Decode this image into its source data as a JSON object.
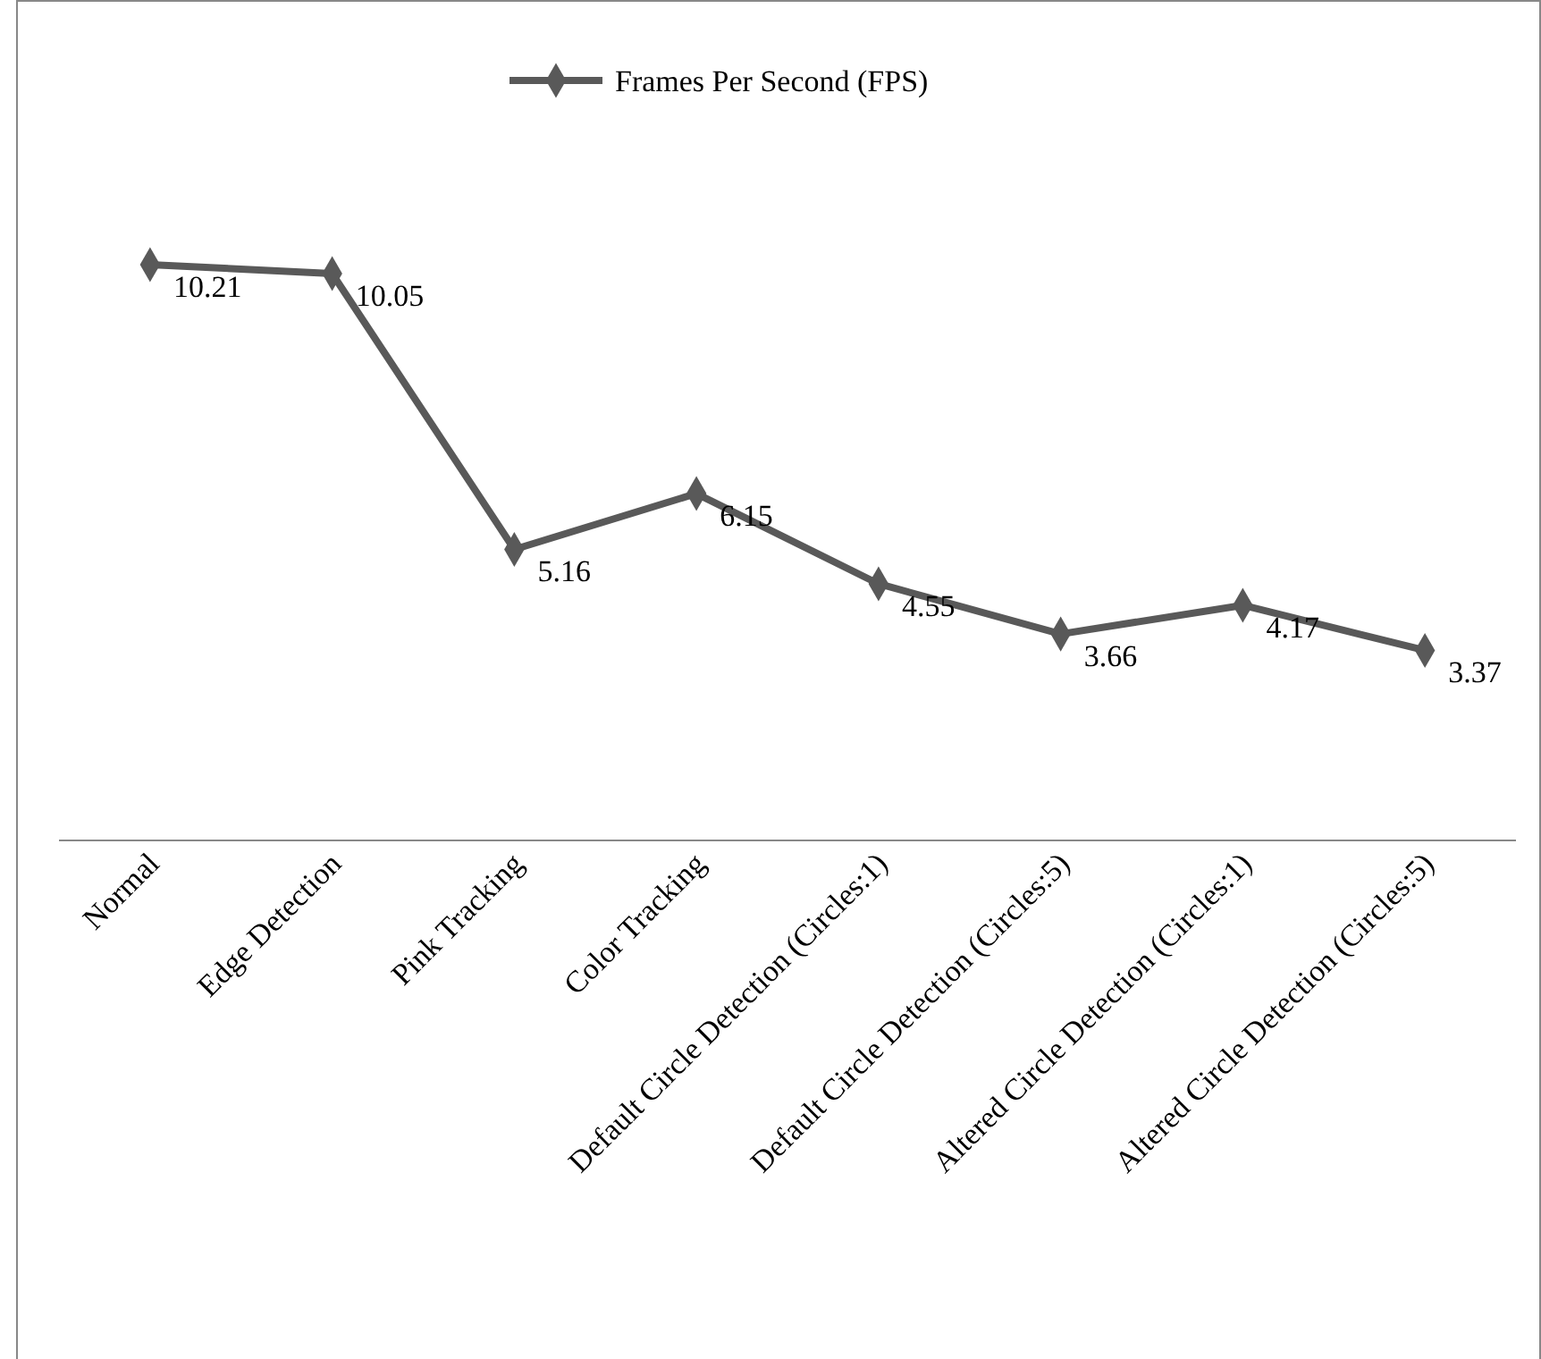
{
  "chart_data": {
    "type": "line",
    "categories": [
      "Normal",
      "Edge Detection",
      "Pink Tracking",
      "Color Tracking",
      "Default Circle Detection (Circles:1)",
      "Default Circle Detection (Circles:5)",
      "Altered Circle Detection (Circles:1)",
      "Altered Circle Detection (Circles:5)"
    ],
    "series": [
      {
        "name": "Frames Per Second (FPS)",
        "color": "#595959",
        "values": [
          10.21,
          10.05,
          5.16,
          6.15,
          4.55,
          3.66,
          4.17,
          3.37
        ]
      }
    ],
    "marker": "diamond",
    "line_style": "solid",
    "data_labels": true,
    "legend": "top"
  }
}
